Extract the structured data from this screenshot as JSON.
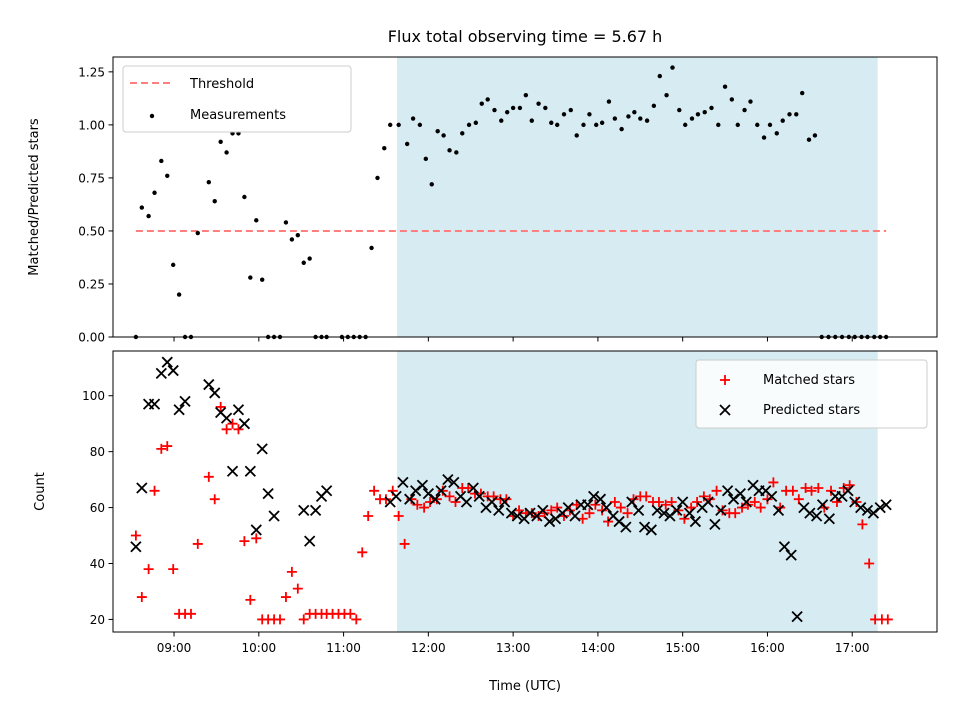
{
  "chart_data": [
    {
      "type": "scatter",
      "title": "Flux total observing time = 5.67 h",
      "ylabel": "Matched/Predicted stars",
      "xlabel": "",
      "xlim": [
        8.28,
        18.0
      ],
      "ylim": [
        0,
        1.32
      ],
      "yticks": [
        0.0,
        0.25,
        0.5,
        0.75,
        1.0,
        1.25
      ],
      "ytick_labels": [
        "0.00",
        "0.25",
        "0.50",
        "0.75",
        "1.00",
        "1.25"
      ],
      "xticks": [
        9,
        10,
        11,
        12,
        13,
        14,
        15,
        16,
        17
      ],
      "xtick_labels": [
        "",
        "",
        "",
        "",
        "",
        "",
        "",
        "",
        ""
      ],
      "shaded_span": [
        11.63,
        17.3
      ],
      "shaded_color": "#add8e6",
      "grid": false,
      "legend_position": "top-left",
      "threshold": {
        "name": "Threshold",
        "value": 0.5,
        "x_range": [
          8.55,
          17.4
        ],
        "color": "#ff7f7f"
      },
      "series": [
        {
          "name": "Measurements",
          "color": "#000000",
          "x": [
            8.55,
            8.62,
            8.7,
            8.77,
            8.85,
            8.92,
            8.99,
            9.06,
            9.13,
            9.2,
            9.28,
            9.41,
            9.48,
            9.55,
            9.62,
            9.69,
            9.76,
            9.83,
            9.9,
            9.97,
            10.04,
            10.11,
            10.18,
            10.25,
            10.32,
            10.39,
            10.46,
            10.53,
            10.6,
            10.67,
            10.74,
            10.8,
            10.98,
            11.05,
            11.12,
            11.19,
            11.26,
            11.33,
            11.4,
            11.48,
            11.55,
            11.65,
            11.75,
            11.82,
            11.9,
            11.97,
            12.04,
            12.11,
            12.18,
            12.25,
            12.33,
            12.4,
            12.48,
            12.56,
            12.63,
            12.7,
            12.78,
            12.86,
            12.93,
            13.0,
            13.08,
            13.15,
            13.22,
            13.3,
            13.38,
            13.45,
            13.52,
            13.6,
            13.68,
            13.75,
            13.83,
            13.9,
            13.98,
            14.05,
            14.13,
            14.2,
            14.28,
            14.36,
            14.43,
            14.5,
            14.58,
            14.66,
            14.73,
            14.81,
            14.88,
            14.96,
            15.03,
            15.11,
            15.18,
            15.26,
            15.34,
            15.42,
            15.5,
            15.58,
            15.65,
            15.73,
            15.8,
            15.88,
            15.96,
            16.03,
            16.11,
            16.18,
            16.26,
            16.34,
            16.41,
            16.49,
            16.56,
            16.64,
            16.72,
            16.8,
            16.88,
            16.96,
            17.03,
            17.11,
            17.18,
            17.26,
            17.33,
            17.4
          ],
          "y": [
            0.0,
            0.61,
            0.57,
            0.68,
            0.83,
            0.76,
            0.34,
            0.2,
            0.0,
            0.0,
            0.49,
            0.73,
            0.64,
            0.92,
            0.87,
            0.96,
            0.96,
            0.66,
            0.28,
            0.55,
            0.27,
            0.0,
            0.0,
            0.0,
            0.54,
            0.46,
            0.48,
            0.35,
            0.37,
            0.0,
            0.0,
            0.0,
            0.0,
            0.0,
            0.0,
            0.0,
            0.0,
            0.42,
            0.75,
            0.89,
            1.0,
            1.0,
            0.91,
            1.03,
            1.0,
            0.84,
            0.72,
            0.97,
            0.95,
            0.88,
            0.87,
            0.96,
            1.0,
            1.01,
            1.1,
            1.12,
            1.07,
            1.02,
            1.06,
            1.08,
            1.08,
            1.14,
            1.02,
            1.1,
            1.08,
            1.01,
            1.0,
            1.05,
            1.07,
            0.95,
            1.0,
            1.05,
            1.0,
            1.01,
            1.11,
            1.03,
            0.98,
            1.04,
            1.06,
            1.03,
            1.02,
            1.09,
            1.23,
            1.14,
            1.27,
            1.07,
            1.0,
            1.03,
            1.05,
            1.06,
            1.08,
            1.0,
            1.18,
            1.12,
            1.0,
            1.07,
            1.11,
            1.0,
            0.94,
            1.0,
            0.96,
            1.02,
            1.05,
            1.05,
            1.15,
            0.93,
            0.95,
            0.0,
            0.0,
            0.0,
            0.0,
            0.0,
            0.0,
            0.0,
            0.0,
            0.0,
            0.0,
            0.0
          ]
        }
      ]
    },
    {
      "type": "scatter",
      "title": "",
      "ylabel": "Count",
      "xlabel": "Time (UTC)",
      "xlim": [
        8.28,
        18.0
      ],
      "ylim": [
        15.5,
        116
      ],
      "yticks": [
        20,
        40,
        60,
        80,
        100
      ],
      "ytick_labels": [
        "20",
        "40",
        "60",
        "80",
        "100"
      ],
      "xticks": [
        9,
        10,
        11,
        12,
        13,
        14,
        15,
        16,
        17
      ],
      "xtick_labels": [
        "09:00",
        "10:00",
        "11:00",
        "12:00",
        "13:00",
        "14:00",
        "15:00",
        "16:00",
        "17:00"
      ],
      "shaded_span": [
        11.63,
        17.3
      ],
      "shaded_color": "#add8e6",
      "grid": false,
      "legend_position": "top-right",
      "series": [
        {
          "name": "Matched stars",
          "marker": "plus",
          "color": "#ff0000",
          "x": [
            8.55,
            8.62,
            8.7,
            8.77,
            8.85,
            8.92,
            8.99,
            9.06,
            9.13,
            9.2,
            9.28,
            9.41,
            9.48,
            9.55,
            9.62,
            9.69,
            9.76,
            9.83,
            9.9,
            9.97,
            10.04,
            10.11,
            10.18,
            10.25,
            10.32,
            10.39,
            10.46,
            10.53,
            10.6,
            10.67,
            10.74,
            10.8,
            10.87,
            10.94,
            11.01,
            11.08,
            11.15,
            11.22,
            11.29,
            11.36,
            11.43,
            11.5,
            11.58,
            11.65,
            11.72,
            11.8,
            11.87,
            11.95,
            12.02,
            12.1,
            12.17,
            12.25,
            12.32,
            12.4,
            12.47,
            12.55,
            12.62,
            12.7,
            12.77,
            12.85,
            12.92,
            13.0,
            13.07,
            13.15,
            13.22,
            13.3,
            13.37,
            13.45,
            13.52,
            13.6,
            13.67,
            13.75,
            13.82,
            13.9,
            13.97,
            14.05,
            14.12,
            14.2,
            14.27,
            14.35,
            14.42,
            14.5,
            14.57,
            14.65,
            14.72,
            14.8,
            14.87,
            14.95,
            15.02,
            15.1,
            15.17,
            15.25,
            15.32,
            15.4,
            15.47,
            15.55,
            15.62,
            15.7,
            15.77,
            15.85,
            15.92,
            16.0,
            16.07,
            16.15,
            16.22,
            16.3,
            16.37,
            16.45,
            16.52,
            16.6,
            16.67,
            16.75,
            16.82,
            16.9,
            16.97,
            17.05,
            17.12,
            17.2,
            17.27,
            17.35,
            17.42
          ],
          "y": [
            50,
            28,
            38,
            66,
            81,
            82,
            38,
            22,
            22,
            22,
            47,
            71,
            63,
            96,
            88,
            90,
            88,
            48,
            27,
            49,
            20,
            20,
            20,
            20,
            28,
            37,
            31,
            20,
            22,
            22,
            22,
            22,
            22,
            22,
            22,
            22,
            20,
            44,
            57,
            66,
            63,
            63,
            66,
            57,
            47,
            63,
            61,
            60,
            62,
            63,
            66,
            64,
            62,
            67,
            67,
            65,
            65,
            64,
            64,
            63,
            63,
            57,
            59,
            58,
            58,
            57,
            58,
            59,
            60,
            57,
            59,
            61,
            56,
            58,
            61,
            59,
            55,
            62,
            60,
            58,
            63,
            64,
            64,
            62,
            62,
            61,
            62,
            59,
            56,
            60,
            62,
            64,
            63,
            66,
            59,
            58,
            58,
            60,
            61,
            62,
            60,
            63,
            69,
            60,
            66,
            66,
            63,
            67,
            66,
            67,
            60,
            66,
            62,
            67,
            68,
            62,
            54,
            40,
            20,
            20,
            20
          ]
        },
        {
          "name": "Predicted stars",
          "marker": "x",
          "color": "#000000",
          "x": [
            8.55,
            8.62,
            8.7,
            8.77,
            8.85,
            8.92,
            8.99,
            9.06,
            9.13,
            9.41,
            9.48,
            9.55,
            9.62,
            9.69,
            9.76,
            9.83,
            9.9,
            9.97,
            10.04,
            10.11,
            10.18,
            10.53,
            10.6,
            10.67,
            10.74,
            10.8,
            11.55,
            11.62,
            11.7,
            11.78,
            11.85,
            11.93,
            12.0,
            12.08,
            12.15,
            12.23,
            12.3,
            12.38,
            12.45,
            12.53,
            12.6,
            12.68,
            12.75,
            12.83,
            12.9,
            12.98,
            13.05,
            13.13,
            13.2,
            13.28,
            13.35,
            13.43,
            13.5,
            13.58,
            13.65,
            13.73,
            13.8,
            13.88,
            13.95,
            14.03,
            14.1,
            14.18,
            14.25,
            14.33,
            14.4,
            14.48,
            14.55,
            14.63,
            14.7,
            14.78,
            14.85,
            14.93,
            15.0,
            15.08,
            15.15,
            15.23,
            15.3,
            15.38,
            15.45,
            15.53,
            15.6,
            15.68,
            15.75,
            15.83,
            15.9,
            15.98,
            16.05,
            16.13,
            16.2,
            16.28,
            16.35,
            16.43,
            16.5,
            16.58,
            16.65,
            16.73,
            16.8,
            16.88,
            16.95,
            17.03,
            17.1,
            17.18,
            17.25,
            17.33,
            17.4
          ],
          "y": [
            46,
            67,
            97,
            97,
            108,
            112,
            109,
            95,
            98,
            104,
            101,
            94,
            92,
            73,
            95,
            90,
            73,
            52,
            81,
            65,
            57,
            59,
            48,
            59,
            64,
            66,
            62,
            64,
            69,
            63,
            66,
            68,
            65,
            63,
            66,
            70,
            69,
            64,
            62,
            67,
            64,
            60,
            62,
            59,
            62,
            58,
            57,
            56,
            58,
            57,
            59,
            55,
            56,
            58,
            60,
            57,
            61,
            61,
            64,
            63,
            60,
            57,
            55,
            53,
            62,
            59,
            53,
            52,
            59,
            58,
            57,
            59,
            62,
            58,
            55,
            60,
            62,
            54,
            59,
            66,
            63,
            65,
            62,
            68,
            66,
            66,
            64,
            59,
            46,
            43,
            21,
            60,
            58,
            57,
            61,
            56,
            64,
            64,
            66,
            62,
            60,
            59,
            58,
            60,
            61
          ]
        }
      ]
    }
  ]
}
